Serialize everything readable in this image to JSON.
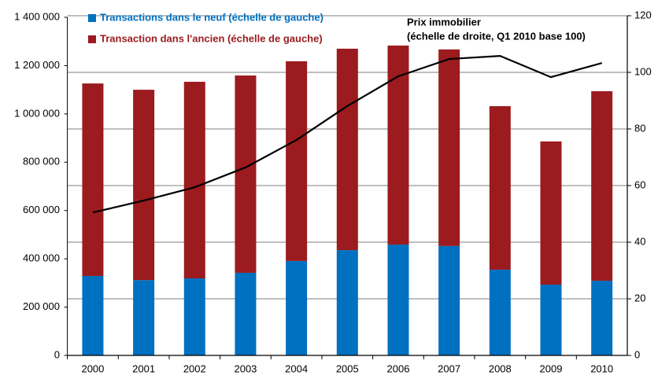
{
  "chart_data": {
    "type": "bar",
    "stacked": true,
    "categories": [
      "2000",
      "2001",
      "2002",
      "2003",
      "2004",
      "2005",
      "2006",
      "2007",
      "2008",
      "2009",
      "2010"
    ],
    "series": [
      {
        "name": "Transactions dans le neuf (échelle de gauche)",
        "color": "#0070c0",
        "values": [
          329000,
          312000,
          319000,
          342000,
          391000,
          436000,
          459000,
          453000,
          355000,
          293000,
          309000
        ]
      },
      {
        "name": "Transaction dans l'ancien (échelle de gauche)",
        "color": "#9b1b1f",
        "values": [
          797000,
          788000,
          814000,
          817000,
          827000,
          834000,
          824000,
          814000,
          677000,
          593000,
          785000
        ]
      },
      {
        "type": "line",
        "axis": "y2",
        "color": "#000000",
        "values": [
          50.5,
          54.7,
          59.4,
          66.4,
          76.1,
          88.1,
          98.6,
          104.7,
          105.8,
          98.3,
          103.3
        ]
      }
    ],
    "annotation": [
      "Prix immobilier",
      "(échelle de droite, Q1 2010 base 100)"
    ],
    "ylim": [
      0,
      1400000
    ],
    "yticks": [
      0,
      {
        "value": 200000,
        "label": "200 000"
      },
      {
        "value": 400000,
        "label": "400 000"
      },
      {
        "value": 600000,
        "label": "600 000"
      },
      {
        "value": 800000,
        "label": "800 000"
      },
      {
        "value": 1000000,
        "label": "1 000 000"
      },
      {
        "value": 1200000,
        "label": "1 200 000"
      },
      {
        "value": 1400000,
        "label": "1 400 000"
      }
    ],
    "y2lim": [
      0,
      120
    ],
    "y2ticks": [
      0,
      20,
      40,
      60,
      80,
      100,
      120
    ],
    "grid": true
  }
}
